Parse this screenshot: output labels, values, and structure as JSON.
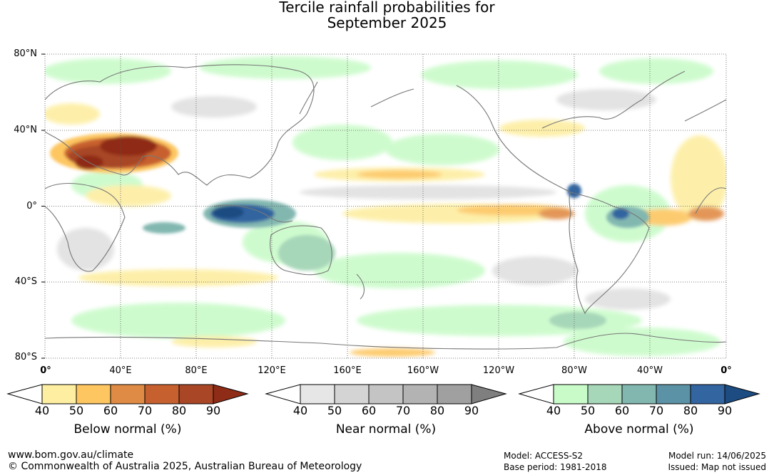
{
  "title": {
    "line1": "Tercile rainfall probabilities for",
    "line2": "September 2025"
  },
  "map": {
    "lat_labels": [
      "80°N",
      "40°N",
      "0°",
      "40°S",
      "80°S"
    ],
    "lon_labels": [
      "0°",
      "40°E",
      "80°E",
      "120°E",
      "160°E",
      "160°W",
      "120°W",
      "80°W",
      "40°W",
      "0°"
    ],
    "lon_range": [
      0,
      360
    ],
    "lat_range": [
      -80,
      80
    ],
    "grid": "dotted"
  },
  "legends": [
    {
      "name": "Below normal (%)",
      "ticks": [
        "40",
        "50",
        "60",
        "70",
        "80",
        "90"
      ],
      "colors": [
        "#ffffff",
        "#fdeea1",
        "#fdc661",
        "#e08b45",
        "#c7602f",
        "#a84626",
        "#8f2c17"
      ]
    },
    {
      "name": "Near normal (%)",
      "ticks": [
        "40",
        "50",
        "60",
        "70",
        "80",
        "90"
      ],
      "colors": [
        "#ffffff",
        "#e6e6e6",
        "#d4d4d4",
        "#c4c4c4",
        "#b3b3b3",
        "#a0a0a0",
        "#7f7f7f"
      ]
    },
    {
      "name": "Above normal (%)",
      "ticks": [
        "40",
        "50",
        "60",
        "70",
        "80",
        "90"
      ],
      "colors": [
        "#ffffff",
        "#c9fbc9",
        "#a7d7b9",
        "#82b7b0",
        "#5b92a5",
        "#3365a0",
        "#1c4c82"
      ]
    }
  ],
  "footer": {
    "url": "www.bom.gov.au/climate",
    "copyright": "© Commonwealth of Australia 2025, Australian Bureau of Meteorology",
    "model": "Model: ACCESS-S2",
    "base_period": "Base period: 1981-2018",
    "model_run": "Model run: 14/06/2025",
    "issued": "Issued: Map not issued"
  }
}
